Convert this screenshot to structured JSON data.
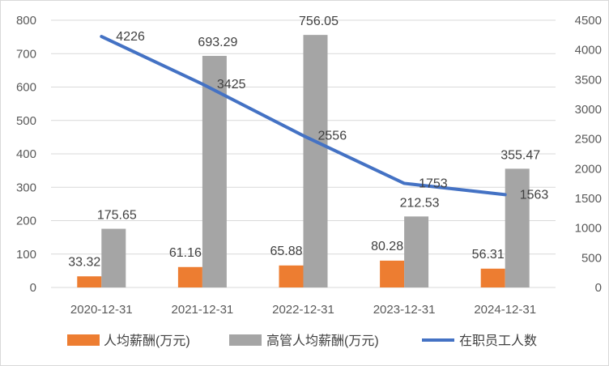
{
  "colors": {
    "avg_salary": "#ED7D31",
    "exec_avg_salary": "#A5A5A5",
    "employees": "#4472C4"
  },
  "chart_data": {
    "type": "bar",
    "categories": [
      "2020-12-31",
      "2021-12-31",
      "2022-12-31",
      "2023-12-31",
      "2024-12-31"
    ],
    "series": [
      {
        "name": "人均薪酬(万元)",
        "type": "bar",
        "axis": "left",
        "values": [
          33.32,
          61.16,
          65.88,
          80.28,
          56.31
        ],
        "labels": [
          "33.32",
          "61.16",
          "65.88",
          "80.28",
          "56.31"
        ]
      },
      {
        "name": "高管人均薪酬(万元)",
        "type": "bar",
        "axis": "left",
        "values": [
          175.65,
          693.29,
          756.05,
          212.53,
          355.47
        ],
        "labels": [
          "175.65",
          "693.29",
          "756.05",
          "212.53",
          "355.47"
        ]
      },
      {
        "name": "在职员工人数",
        "type": "line",
        "axis": "right",
        "values": [
          4226,
          3425,
          2556,
          1753,
          1563
        ],
        "labels": [
          "4226",
          "3425",
          "2556",
          "1753",
          "1563"
        ]
      }
    ],
    "y_left": {
      "ylim": [
        0,
        800
      ],
      "ticks": [
        "0",
        "100",
        "200",
        "300",
        "400",
        "500",
        "600",
        "700",
        "800"
      ]
    },
    "y_right": {
      "ylim": [
        0,
        4500
      ],
      "ticks": [
        "0",
        "500",
        "1000",
        "1500",
        "2000",
        "2500",
        "3000",
        "3500",
        "4000",
        "4500"
      ]
    },
    "grid": true,
    "legend_position": "bottom"
  }
}
